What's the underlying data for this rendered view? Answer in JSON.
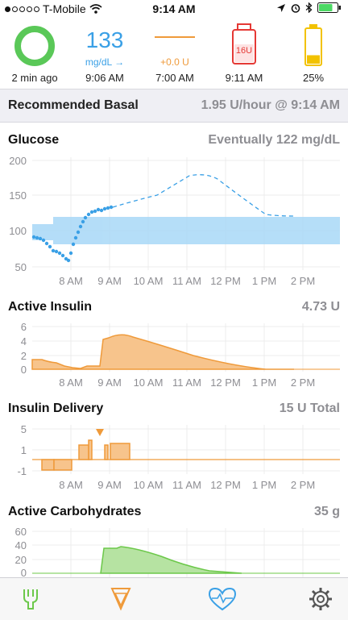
{
  "status_bar": {
    "carrier": "T-Mobile",
    "time": "9:14 AM",
    "battery_percent": 75
  },
  "hud": {
    "loop": {
      "caption": "2 min ago",
      "status_color": "#5ac858"
    },
    "glucose": {
      "value": "133",
      "unit": "mg/dL →",
      "time": "9:06 AM",
      "color": "#3aa0e6"
    },
    "temp_basal": {
      "value": "+0.0 U",
      "time": "7:00 AM",
      "color": "#ef9a3a"
    },
    "reservoir": {
      "label": "16U",
      "time": "9:11 AM",
      "color": "#e53935"
    },
    "pump_battery": {
      "caption": "25%",
      "level_fraction": 0.25,
      "color": "#f2c200"
    }
  },
  "recommended_basal": {
    "label": "Recommended Basal",
    "value": "1.95 U/hour @ 9:14 AM"
  },
  "x_ticks": [
    "8 AM",
    "9 AM",
    "10 AM",
    "11 AM",
    "12 PM",
    "1 PM",
    "2 PM"
  ],
  "glucose": {
    "title": "Glucose",
    "summary": "Eventually 122 mg/dL",
    "y_ticks": [
      "200",
      "150",
      "100",
      "50"
    ],
    "color": "#3aa0e6"
  },
  "active_insulin": {
    "title": "Active Insulin",
    "summary": "4.73 U",
    "y_ticks": [
      "6",
      "4",
      "2",
      "0"
    ],
    "color": "#ef9a3a"
  },
  "insulin_delivery": {
    "title": "Insulin Delivery",
    "summary": "15 U Total",
    "y_ticks": [
      "5",
      "1",
      "-1"
    ],
    "color": "#ef9a3a"
  },
  "active_carbs": {
    "title": "Active Carbohydrates",
    "summary": "35 g",
    "y_ticks": [
      "60",
      "40",
      "20",
      "0"
    ],
    "color": "#6cc84a"
  },
  "tab_bar": {
    "items": [
      {
        "icon": "carbs-fork-icon",
        "color": "#6cc84a"
      },
      {
        "icon": "bolus-icon",
        "color": "#ef9a3a"
      },
      {
        "icon": "health-heart-icon",
        "color": "#3aa0e6"
      },
      {
        "icon": "settings-gear-icon",
        "color": "#555555"
      }
    ]
  }
}
